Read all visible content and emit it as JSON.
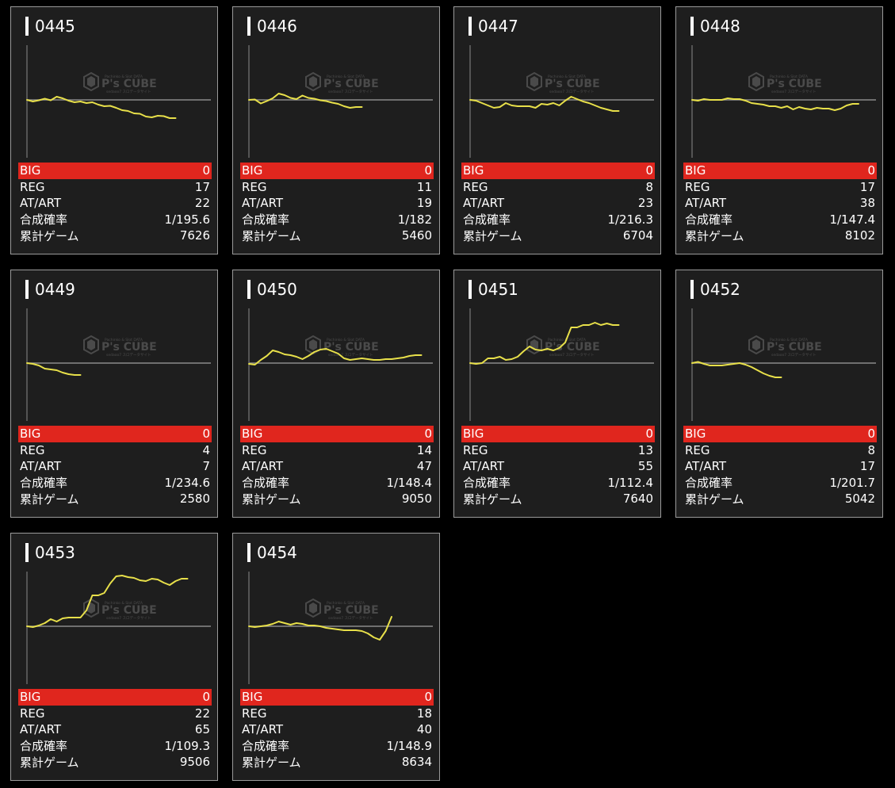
{
  "colors": {
    "background": "#000000",
    "card_background": "#1e1e1e",
    "card_border": "#9a9a9a",
    "big_row": "#e0261e",
    "line": "#e8e04a",
    "axis": "#8a8a8a"
  },
  "watermark": {
    "small_text": "Pachinko & Slot DATA",
    "brand": "P's CUBE",
    "sub_text": "sedaoo7 スロデータサイト"
  },
  "labels": {
    "big": "BIG",
    "reg": "REG",
    "at": "AT/ART",
    "prob": "合成確率",
    "games": "累計ゲーム"
  },
  "machines": [
    {
      "id": "0445",
      "big": "0",
      "reg": "17",
      "at": "22",
      "prob": "1/195.6",
      "games": "7626"
    },
    {
      "id": "0446",
      "big": "0",
      "reg": "11",
      "at": "19",
      "prob": "1/182",
      "games": "5460"
    },
    {
      "id": "0447",
      "big": "0",
      "reg": "8",
      "at": "23",
      "prob": "1/216.3",
      "games": "6704"
    },
    {
      "id": "0448",
      "big": "0",
      "reg": "17",
      "at": "38",
      "prob": "1/147.4",
      "games": "8102"
    },
    {
      "id": "0449",
      "big": "0",
      "reg": "4",
      "at": "7",
      "prob": "1/234.6",
      "games": "2580"
    },
    {
      "id": "0450",
      "big": "0",
      "reg": "14",
      "at": "47",
      "prob": "1/148.4",
      "games": "9050"
    },
    {
      "id": "0451",
      "big": "0",
      "reg": "13",
      "at": "55",
      "prob": "1/112.4",
      "games": "7640"
    },
    {
      "id": "0452",
      "big": "0",
      "reg": "8",
      "at": "17",
      "prob": "1/201.7",
      "games": "5042"
    },
    {
      "id": "0453",
      "big": "0",
      "reg": "22",
      "at": "65",
      "prob": "1/109.3",
      "games": "9506"
    },
    {
      "id": "0454",
      "big": "0",
      "reg": "18",
      "at": "40",
      "prob": "1/148.9",
      "games": "8634"
    }
  ],
  "chart_data": [
    {
      "type": "line",
      "machine": "0445",
      "x": [
        0,
        1,
        2,
        3,
        4,
        5,
        6,
        7,
        8,
        9,
        10,
        11,
        12,
        13,
        14,
        15,
        16,
        17,
        18,
        19,
        20,
        21,
        22,
        23,
        24,
        25
      ],
      "y": [
        0,
        -4,
        -1,
        3,
        -1,
        8,
        4,
        -2,
        -6,
        -4,
        -8,
        -6,
        -12,
        -16,
        -15,
        -20,
        -26,
        -28,
        -34,
        -35,
        -42,
        -44,
        -40,
        -41,
        -46,
        -46
      ],
      "ylim": [
        -140,
        140
      ]
    },
    {
      "type": "line",
      "machine": "0446",
      "x": [
        0,
        1,
        2,
        3,
        4,
        5,
        6,
        7,
        8,
        9,
        10,
        11,
        12,
        13,
        14,
        15,
        16,
        17,
        18,
        19
      ],
      "y": [
        0,
        1,
        -9,
        -3,
        4,
        16,
        12,
        5,
        2,
        11,
        5,
        3,
        -1,
        -3,
        -7,
        -10,
        -16,
        -20,
        -18,
        -18
      ],
      "ylim": [
        -140,
        140
      ]
    },
    {
      "type": "line",
      "machine": "0447",
      "x": [
        0,
        1,
        2,
        3,
        4,
        5,
        6,
        7,
        8,
        9,
        10,
        11,
        12,
        13,
        14,
        15,
        16,
        17,
        18,
        19,
        20,
        21,
        22,
        23,
        24,
        25
      ],
      "y": [
        0,
        -2,
        -8,
        -14,
        -20,
        -18,
        -8,
        -14,
        -16,
        -16,
        -16,
        -20,
        -10,
        -12,
        -8,
        -14,
        -2,
        8,
        2,
        -4,
        -8,
        -14,
        -20,
        -24,
        -28,
        -28
      ],
      "ylim": [
        -140,
        140
      ]
    },
    {
      "type": "line",
      "machine": "0448",
      "x": [
        0,
        1,
        2,
        3,
        4,
        5,
        6,
        7,
        8,
        9,
        10,
        11,
        12,
        13,
        14,
        15,
        16,
        17,
        18,
        19,
        20,
        21,
        22,
        23,
        24,
        25,
        26,
        27,
        28
      ],
      "y": [
        0,
        -2,
        2,
        0,
        0,
        0,
        4,
        2,
        2,
        -2,
        -8,
        -10,
        -12,
        -16,
        -16,
        -20,
        -16,
        -24,
        -18,
        -22,
        -24,
        -20,
        -22,
        -22,
        -26,
        -22,
        -14,
        -10,
        -10
      ],
      "ylim": [
        -140,
        140
      ]
    },
    {
      "type": "line",
      "machine": "0449",
      "x": [
        0,
        1,
        2,
        3,
        4,
        5,
        6,
        7,
        8,
        9
      ],
      "y": [
        0,
        -2,
        -6,
        -14,
        -16,
        -18,
        -24,
        -28,
        -30,
        -30
      ],
      "ylim": [
        -140,
        140
      ]
    },
    {
      "type": "line",
      "machine": "0450",
      "x": [
        0,
        1,
        2,
        3,
        4,
        5,
        6,
        7,
        8,
        9,
        10,
        11,
        12,
        13,
        14,
        15,
        16,
        17,
        18,
        19,
        20,
        21,
        22,
        23,
        24,
        25,
        26,
        27,
        28,
        29
      ],
      "y": [
        -2,
        -4,
        8,
        18,
        32,
        28,
        22,
        20,
        16,
        10,
        18,
        28,
        34,
        36,
        30,
        24,
        12,
        8,
        10,
        12,
        10,
        8,
        8,
        10,
        10,
        12,
        14,
        18,
        20,
        20
      ],
      "ylim": [
        -140,
        140
      ]
    },
    {
      "type": "line",
      "machine": "0451",
      "x": [
        0,
        1,
        2,
        3,
        4,
        5,
        6,
        7,
        8,
        9,
        10,
        11,
        12,
        13,
        14,
        15,
        16,
        17,
        18,
        19,
        20,
        21,
        22,
        23,
        24,
        25
      ],
      "y": [
        0,
        -2,
        0,
        12,
        12,
        16,
        8,
        10,
        16,
        30,
        42,
        34,
        32,
        36,
        32,
        38,
        52,
        90,
        90,
        96,
        96,
        102,
        96,
        100,
        96,
        96
      ],
      "ylim": [
        -140,
        140
      ]
    },
    {
      "type": "line",
      "machine": "0452",
      "x": [
        0,
        1,
        2,
        3,
        4,
        5,
        6,
        7,
        8,
        9,
        10,
        11,
        12,
        13,
        14,
        15
      ],
      "y": [
        0,
        3,
        -2,
        -6,
        -6,
        -6,
        -4,
        -2,
        0,
        -4,
        -10,
        -18,
        -26,
        -32,
        -36,
        -36
      ],
      "ylim": [
        -140,
        140
      ]
    },
    {
      "type": "line",
      "machine": "0453",
      "x": [
        0,
        1,
        2,
        3,
        4,
        5,
        6,
        7,
        8,
        9,
        10,
        11,
        12,
        13,
        14,
        15,
        16,
        17,
        18,
        19,
        20,
        21,
        22,
        23,
        24,
        25,
        26,
        27
      ],
      "y": [
        0,
        -2,
        2,
        8,
        18,
        12,
        20,
        22,
        22,
        22,
        40,
        78,
        78,
        84,
        108,
        126,
        128,
        124,
        122,
        116,
        114,
        120,
        118,
        110,
        104,
        114,
        120,
        120
      ],
      "ylim": [
        -140,
        140
      ]
    },
    {
      "type": "line",
      "machine": "0454",
      "x": [
        0,
        1,
        2,
        3,
        4,
        5,
        6,
        7,
        8,
        9,
        10,
        11,
        12,
        13,
        14,
        15,
        16,
        17,
        18,
        19,
        20,
        21,
        22,
        23,
        24
      ],
      "y": [
        0,
        -2,
        0,
        2,
        6,
        12,
        8,
        4,
        8,
        6,
        2,
        2,
        0,
        -4,
        -6,
        -8,
        -10,
        -10,
        -10,
        -12,
        -18,
        -28,
        -34,
        -12,
        24
      ],
      "ylim": [
        -140,
        140
      ]
    }
  ]
}
